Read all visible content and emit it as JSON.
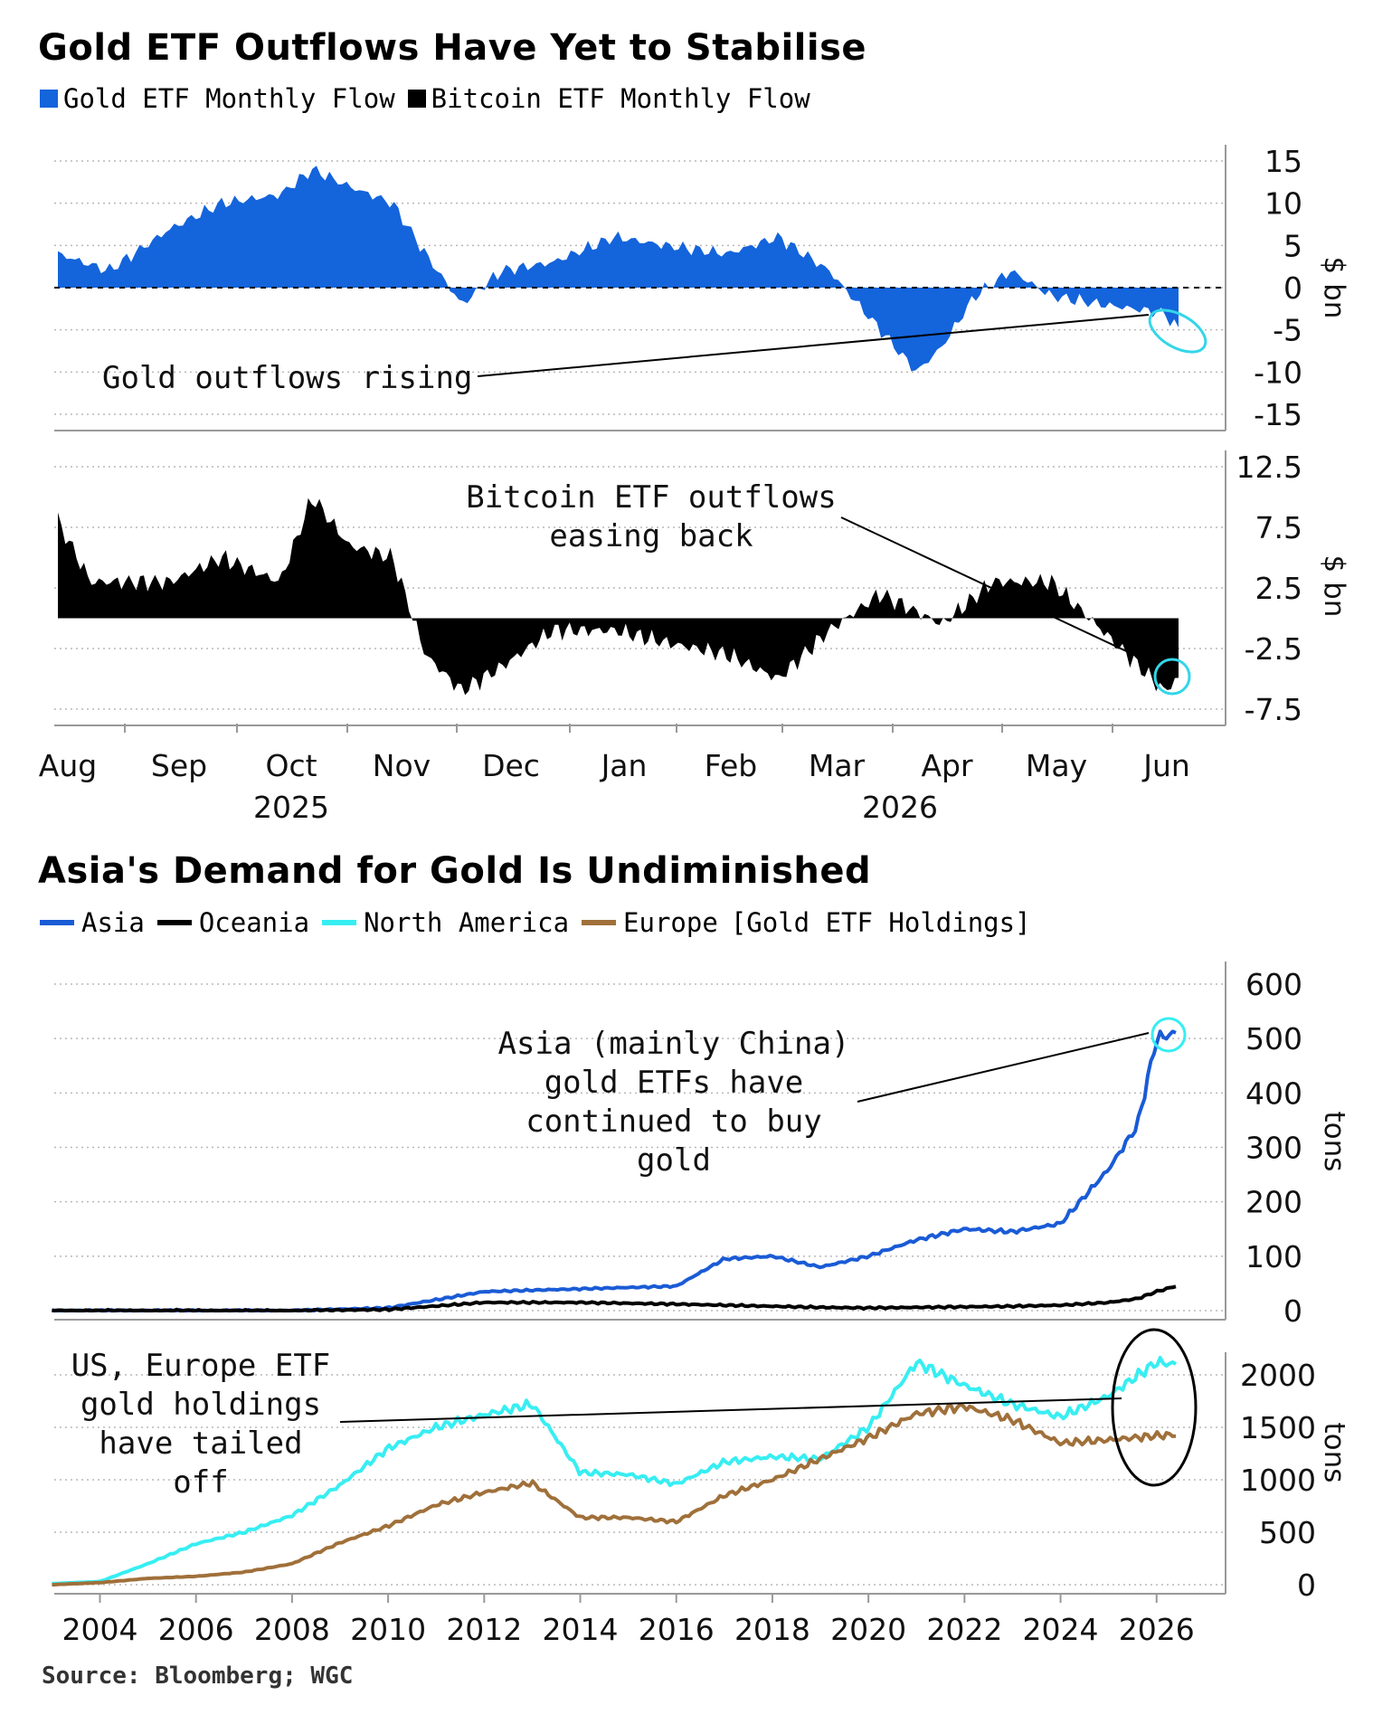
{
  "chart1": {
    "title": "Gold ETF Outflows Have Yet to Stabilise",
    "legend": [
      "Gold ETF Monthly Flow",
      "Bitcoin ETF Monthly Flow"
    ],
    "colors": {
      "gold": "#1464dc",
      "bitcoin": "#000000",
      "highlight": "#33d6e8"
    }
  },
  "chart2": {
    "title": "Asia's Demand for Gold Is Undiminished",
    "legend": [
      "Asia",
      "Oceania",
      "North America",
      "Europe"
    ],
    "legend_suffix": "[Gold ETF Holdings]",
    "colors": {
      "asia": "#1a5bd6",
      "oceania": "#000000",
      "north_america": "#37eef2",
      "europe": "#a0703a"
    }
  },
  "source": "Source: Bloomberg; WGC",
  "chart_data": [
    {
      "type": "area",
      "panel": "top",
      "series": [
        {
          "name": "Gold ETF Monthly Flow"
        }
      ],
      "ylabel": "$ bn",
      "ylim": [
        -15,
        15
      ],
      "yticks": [
        "15",
        "10",
        "5",
        "0",
        "-5",
        "-10",
        "-15"
      ],
      "x_dates": [
        "2025-08-01",
        "2025-08-15",
        "2025-09-01",
        "2025-09-15",
        "2025-10-01",
        "2025-10-10",
        "2025-10-20",
        "2025-11-01",
        "2025-11-10",
        "2025-11-20",
        "2025-12-01",
        "2025-12-15",
        "2026-01-01",
        "2026-01-15",
        "2026-02-01",
        "2026-02-15",
        "2026-03-01",
        "2026-03-15",
        "2026-03-25",
        "2026-04-01",
        "2026-04-10",
        "2026-04-20",
        "2026-05-01",
        "2026-05-15",
        "2026-06-01",
        "2026-06-05"
      ],
      "values": [
        4,
        2,
        7,
        10,
        11,
        14,
        12,
        10,
        4,
        -2,
        2,
        3,
        6,
        5,
        4,
        6,
        2,
        -5,
        -10,
        -7,
        -1,
        2,
        -1,
        -2,
        -3,
        -5
      ],
      "annotation": "Gold outflows rising",
      "grid": true
    },
    {
      "type": "area",
      "panel": "middle",
      "series": [
        {
          "name": "Bitcoin ETF Monthly Flow"
        }
      ],
      "ylabel": "$ bn",
      "ylim": [
        -7.5,
        12.5
      ],
      "yticks": [
        "12.5",
        "7.5",
        "2.5",
        "-2.5",
        "-7.5"
      ],
      "x_dates": [
        "2025-08-01",
        "2025-08-10",
        "2025-08-20",
        "2025-09-01",
        "2025-09-15",
        "2025-10-01",
        "2025-10-10",
        "2025-10-20",
        "2025-11-01",
        "2025-11-10",
        "2025-11-20",
        "2025-12-01",
        "2025-12-15",
        "2026-01-01",
        "2026-01-15",
        "2026-02-01",
        "2026-02-15",
        "2026-03-01",
        "2026-03-15",
        "2026-04-01",
        "2026-04-15",
        "2026-05-01",
        "2026-05-15",
        "2026-06-01",
        "2026-06-05"
      ],
      "values": [
        8,
        3,
        3,
        3,
        5,
        3,
        10,
        6,
        5,
        -3,
        -6,
        -4,
        -1,
        -1,
        -2,
        -3,
        -5,
        -1,
        2,
        -0.5,
        3,
        3,
        -1,
        -6,
        -5
      ],
      "xticks": [
        "Aug",
        "Sep",
        "Oct",
        "Nov",
        "Dec",
        "Jan",
        "Feb",
        "Mar",
        "Apr",
        "May",
        "Jun"
      ],
      "year_labels": [
        "2025",
        "2026"
      ],
      "annotation": "Bitcoin ETF outflows easing back",
      "grid": true
    },
    {
      "type": "line",
      "panel": "lower-top",
      "ylabel": "tons",
      "ylim": [
        0,
        600
      ],
      "yticks": [
        "600",
        "500",
        "400",
        "300",
        "200",
        "100",
        "0"
      ],
      "x": [
        2003,
        2008,
        2010,
        2012,
        2014,
        2016,
        2017,
        2018,
        2019,
        2020,
        2021,
        2022,
        2023,
        2024,
        2025,
        2025.6,
        2026,
        2026.4
      ],
      "series": [
        {
          "name": "Asia",
          "values": [
            0,
            0,
            5,
            35,
            40,
            45,
            95,
            100,
            80,
            100,
            130,
            150,
            145,
            160,
            260,
            340,
            500,
            510
          ]
        },
        {
          "name": "Oceania",
          "values": [
            0,
            0,
            2,
            15,
            15,
            12,
            10,
            8,
            6,
            5,
            6,
            7,
            8,
            10,
            15,
            22,
            35,
            45
          ]
        }
      ],
      "annotation": "Asia (mainly China) gold ETFs have continued to buy gold",
      "grid": true
    },
    {
      "type": "line",
      "panel": "lower-bottom",
      "ylabel": "tons",
      "ylim": [
        0,
        2000
      ],
      "yticks": [
        "2000",
        "1500",
        "1000",
        "500",
        "0"
      ],
      "xticks": [
        "2004",
        "2006",
        "2008",
        "2010",
        "2012",
        "2014",
        "2016",
        "2018",
        "2020",
        "2022",
        "2024",
        "2026"
      ],
      "x": [
        2003,
        2004,
        2005,
        2006,
        2007,
        2008,
        2009,
        2010,
        2011,
        2012,
        2013,
        2014,
        2015,
        2016,
        2017,
        2018,
        2019,
        2020,
        2021,
        2022,
        2023,
        2024,
        2025,
        2026,
        2026.4
      ],
      "series": [
        {
          "name": "North America",
          "values": [
            10,
            30,
            200,
            390,
            500,
            660,
            950,
            1300,
            1500,
            1620,
            1720,
            1070,
            1050,
            960,
            1170,
            1220,
            1200,
            1500,
            2120,
            1900,
            1720,
            1600,
            1800,
            2120,
            2100
          ]
        },
        {
          "name": "Europe",
          "values": [
            0,
            20,
            60,
            80,
            120,
            200,
            400,
            560,
            760,
            880,
            970,
            640,
            640,
            600,
            850,
            1000,
            1200,
            1400,
            1630,
            1700,
            1570,
            1350,
            1380,
            1420,
            1430
          ]
        }
      ],
      "annotation": "US, Europe ETF gold holdings have tailed off",
      "grid": true
    }
  ]
}
